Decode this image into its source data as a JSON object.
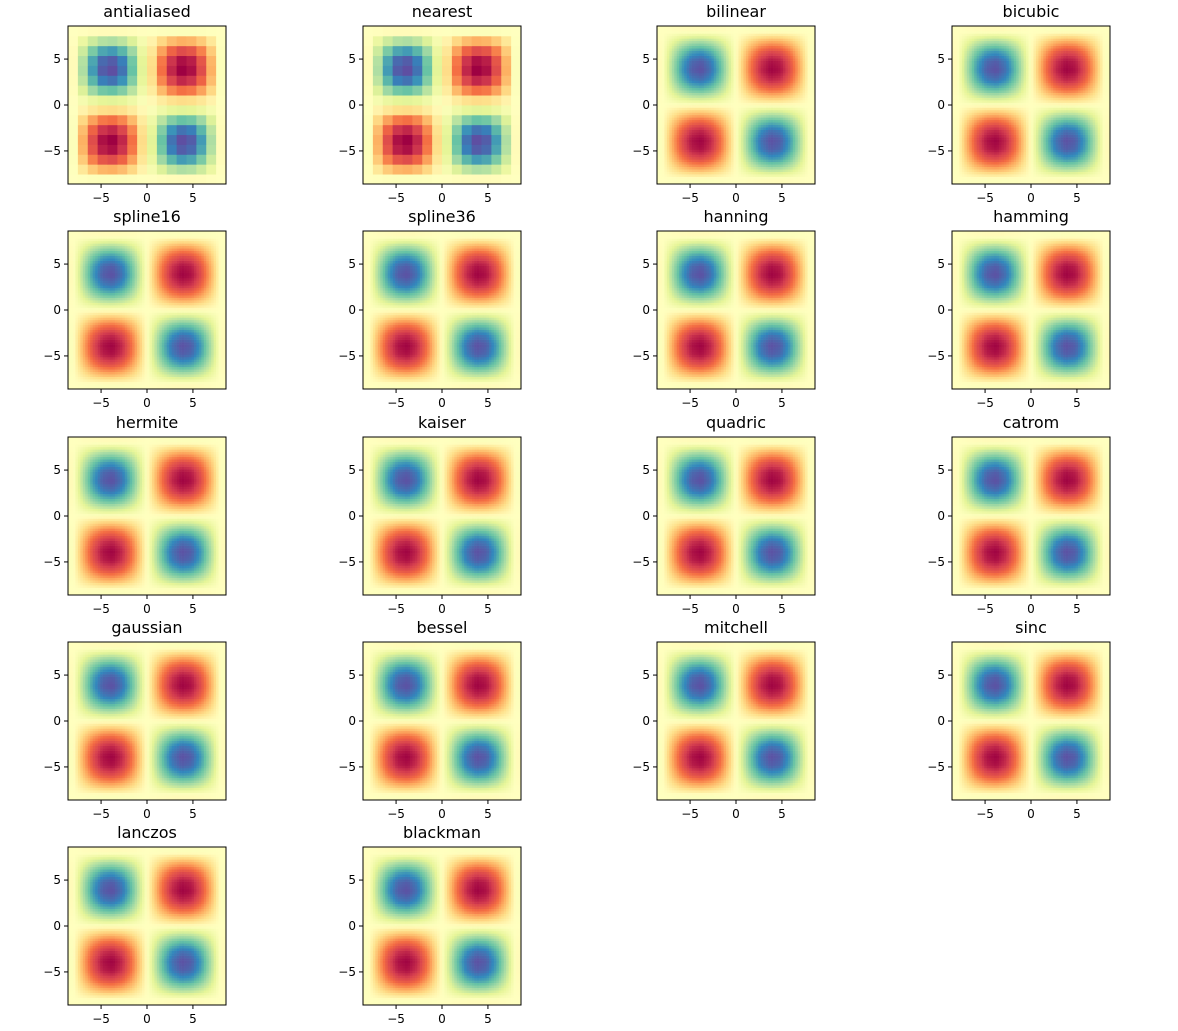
{
  "chart_data": {
    "type": "heatmap",
    "layout": {
      "rows": 5,
      "cols": 4
    },
    "colormap": "Spectral",
    "colormap_stops": [
      "#5e4fa2",
      "#3288bd",
      "#66c2a5",
      "#abdda4",
      "#e6f598",
      "#ffffbf",
      "#fee08b",
      "#fdae61",
      "#f46d43",
      "#d53e4f",
      "#9e0142"
    ],
    "xlim": [
      -8.6,
      8.6
    ],
    "ylim": [
      -8.6,
      8.6
    ],
    "xticks": [
      -5,
      0,
      5
    ],
    "yticks": [
      -5,
      0,
      5
    ],
    "xtick_labels": [
      "−5",
      "0",
      "5"
    ],
    "ytick_labels": [
      "−5",
      "0",
      "5"
    ],
    "grid": false,
    "function": "value peaks at (±4, ±4), minimum at (0,0) and corners; sampled on a 16×16 grid",
    "subplots": [
      {
        "title": "antialiased",
        "interpolation": "antialiased"
      },
      {
        "title": "nearest",
        "interpolation": "nearest"
      },
      {
        "title": "bilinear",
        "interpolation": "bilinear"
      },
      {
        "title": "bicubic",
        "interpolation": "bicubic"
      },
      {
        "title": "spline16",
        "interpolation": "spline16"
      },
      {
        "title": "spline36",
        "interpolation": "spline36"
      },
      {
        "title": "hanning",
        "interpolation": "hanning"
      },
      {
        "title": "hamming",
        "interpolation": "hamming"
      },
      {
        "title": "hermite",
        "interpolation": "hermite"
      },
      {
        "title": "kaiser",
        "interpolation": "kaiser"
      },
      {
        "title": "quadric",
        "interpolation": "quadric"
      },
      {
        "title": "catrom",
        "interpolation": "catrom"
      },
      {
        "title": "gaussian",
        "interpolation": "gaussian"
      },
      {
        "title": "bessel",
        "interpolation": "bessel"
      },
      {
        "title": "mitchell",
        "interpolation": "mitchell"
      },
      {
        "title": "sinc",
        "interpolation": "sinc"
      },
      {
        "title": "lanczos",
        "interpolation": "lanczos"
      },
      {
        "title": "blackman",
        "interpolation": "blackman"
      }
    ]
  }
}
